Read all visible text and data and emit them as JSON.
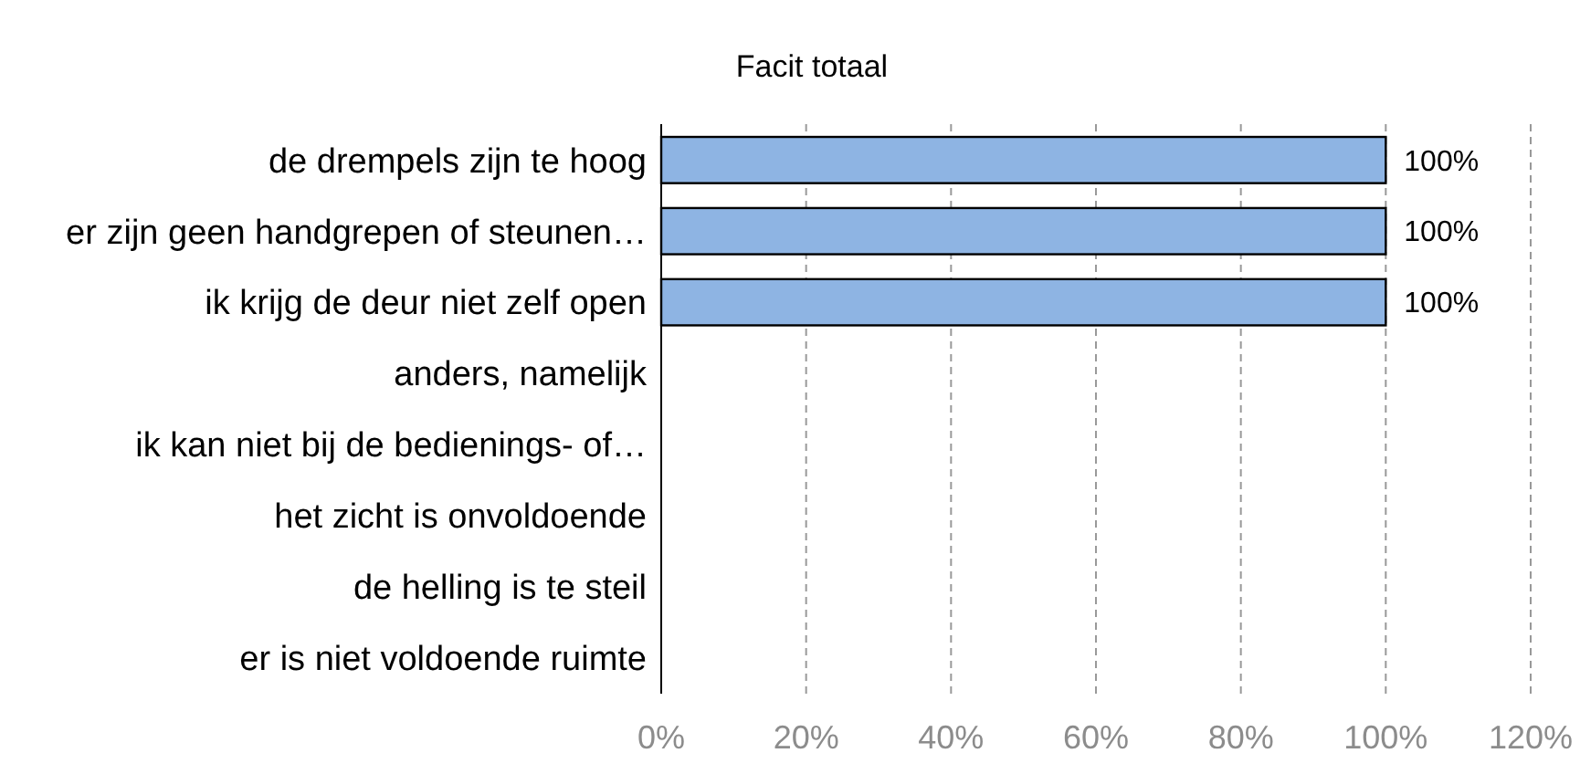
{
  "chart_data": {
    "type": "bar",
    "orientation": "horizontal",
    "title": "Facit totaal",
    "categories": [
      "de drempels zijn te hoog",
      "er zijn geen handgrepen of steunen…",
      "ik krijg de deur niet zelf open",
      "anders, namelijk",
      "ik kan niet bij de bedienings- of…",
      "het zicht is onvoldoende",
      "de helling is te steil",
      "er is niet voldoende ruimte"
    ],
    "values": [
      100,
      100,
      100,
      0,
      0,
      0,
      0,
      0
    ],
    "value_labels": [
      "100%",
      "100%",
      "100%",
      null,
      null,
      null,
      null,
      null
    ],
    "color": "#8eb4e3",
    "xlim": [
      0,
      120
    ],
    "xticks": [
      {
        "value": 0,
        "label": "0%"
      },
      {
        "value": 20,
        "label": "20%"
      },
      {
        "value": 40,
        "label": "40%"
      },
      {
        "value": 60,
        "label": "60%"
      },
      {
        "value": 80,
        "label": "80%"
      },
      {
        "value": 100,
        "label": "100%"
      },
      {
        "value": 120,
        "label": "120%"
      }
    ],
    "grid": "x",
    "line_style": "dashed"
  }
}
